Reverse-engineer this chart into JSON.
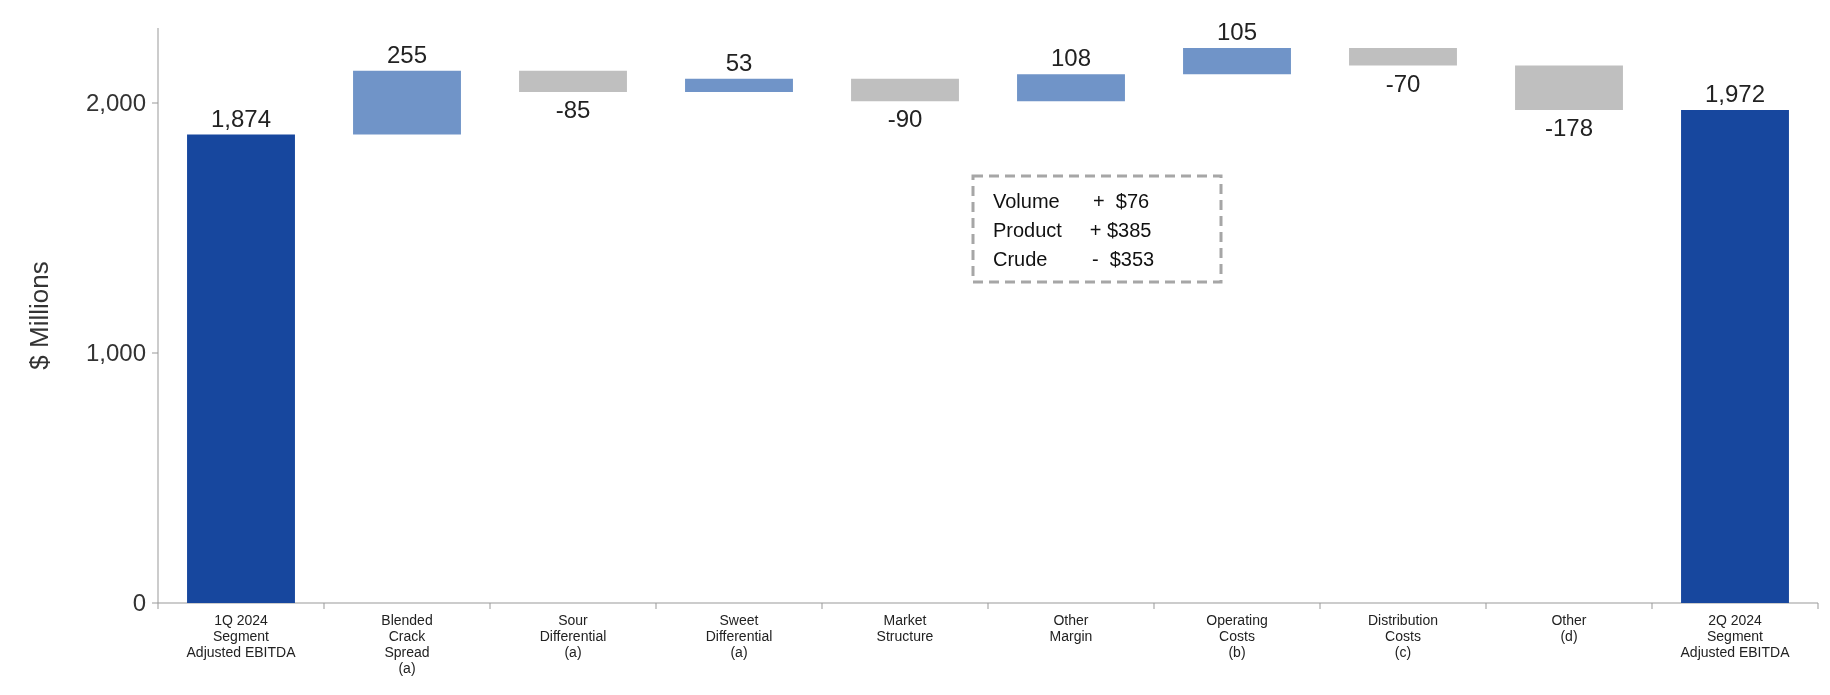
{
  "chart_data": {
    "type": "bar",
    "ylabel": "$ Millions",
    "categories": [
      "1Q 2024\nSegment\nAdjusted EBITDA",
      "Blended\nCrack\nSpread\n(a)",
      "Sour\nDifferential\n(a)",
      "Sweet\nDifferential\n(a)",
      "Market\nStructure",
      "Other\nMargin",
      "Operating\nCosts\n(b)",
      "Distribution\nCosts\n(c)",
      "Other\n(d)",
      "2Q 2024\nSegment\nAdjusted EBITDA"
    ],
    "values": [
      1874,
      255,
      -85,
      53,
      -90,
      108,
      105,
      -70,
      -178,
      1972
    ],
    "base": [
      0,
      1874,
      2129,
      2044,
      2097,
      2007,
      2115,
      2220,
      2150,
      0
    ],
    "colors": [
      "#17479e",
      "#7094c8",
      "#bfbfbf",
      "#7094c8",
      "#bfbfbf",
      "#7094c8",
      "#7094c8",
      "#bfbfbf",
      "#bfbfbf",
      "#17479e"
    ],
    "value_labels": [
      "1,874",
      "255",
      "-85",
      "53",
      "-90",
      "108",
      "105",
      "-70",
      "-178",
      "1,972"
    ],
    "ylim": [
      0,
      2300
    ],
    "yticks": [
      0,
      {
        "value": 1000,
        "label": "1,000"
      },
      {
        "value": 2000,
        "label": "2,000"
      }
    ],
    "annotations": [
      "Volume      +  $76",
      "Product     + $385",
      "Crude        -  $353"
    ]
  }
}
